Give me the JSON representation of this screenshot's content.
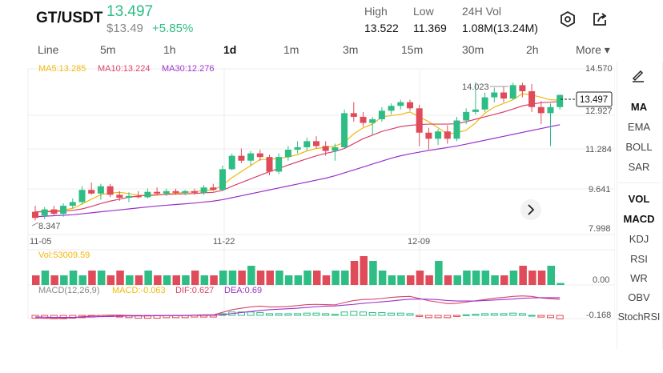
{
  "header": {
    "pair": "GT/USDT",
    "price": "13.497",
    "usd_price": "$13.49",
    "change": "+5.85%",
    "high_label": "High",
    "high_value": "13.522",
    "low_label": "Low",
    "low_value": "11.369",
    "vol_label": "24H Vol",
    "vol_value": "1.08M(13.24M)"
  },
  "timeframes": [
    {
      "label": "Line"
    },
    {
      "label": "5m"
    },
    {
      "label": "1h"
    },
    {
      "label": "1d"
    },
    {
      "label": "1m"
    },
    {
      "label": "3m"
    },
    {
      "label": "15m"
    },
    {
      "label": "30m"
    },
    {
      "label": "2h"
    },
    {
      "label": "More ▾"
    }
  ],
  "active_timeframe": "1d",
  "ma_legend": {
    "ma5": "MA5:13.285",
    "ma10": "MA10:13.224",
    "ma30": "MA30:12.276"
  },
  "price_axis": [
    "14.570",
    "12.927",
    "11.284",
    "9.641",
    "7.998"
  ],
  "current_price_tag": "13.497",
  "high_marker": "14.023",
  "low_marker": "8.347",
  "date_labels": [
    "11-05",
    "11-22",
    "12-09"
  ],
  "volume": {
    "label": "Vol:53009.59",
    "axis": "0.00"
  },
  "macd": {
    "label": "MACD(12,26,9)",
    "macd": "MACD:-0.063",
    "dif": "DIF:0.627",
    "dea": "DEA:0.69",
    "axis": "-0.168"
  },
  "indicators": [
    "MA",
    "EMA",
    "BOLL",
    "SAR",
    "VOL",
    "MACD",
    "KDJ",
    "RSI",
    "WR",
    "OBV",
    "StochRSI"
  ],
  "colors": {
    "up": "#2ebd85",
    "down": "#e04b5a",
    "ma5": "#f0b90b",
    "ma10": "#d9436b",
    "ma30": "#9b32c8"
  },
  "chart_data": {
    "type": "candlestick",
    "ylim": [
      7.998,
      14.57
    ],
    "candles": [
      {
        "o": 8.7,
        "h": 8.95,
        "l": 8.35,
        "c": 8.45
      },
      {
        "o": 8.55,
        "h": 8.9,
        "l": 8.4,
        "c": 8.8
      },
      {
        "o": 8.8,
        "h": 8.95,
        "l": 8.55,
        "c": 8.62
      },
      {
        "o": 8.62,
        "h": 9.05,
        "l": 8.5,
        "c": 8.95
      },
      {
        "o": 8.95,
        "h": 9.25,
        "l": 8.85,
        "c": 9.1
      },
      {
        "o": 9.1,
        "h": 9.75,
        "l": 9.0,
        "c": 9.6
      },
      {
        "o": 9.6,
        "h": 9.9,
        "l": 9.4,
        "c": 9.45
      },
      {
        "o": 9.45,
        "h": 9.85,
        "l": 9.2,
        "c": 9.75
      },
      {
        "o": 9.75,
        "h": 9.85,
        "l": 9.3,
        "c": 9.4
      },
      {
        "o": 9.4,
        "h": 9.55,
        "l": 9.15,
        "c": 9.28
      },
      {
        "o": 9.28,
        "h": 9.5,
        "l": 9.1,
        "c": 9.35
      },
      {
        "o": 9.35,
        "h": 9.55,
        "l": 9.25,
        "c": 9.3
      },
      {
        "o": 9.3,
        "h": 9.65,
        "l": 9.25,
        "c": 9.52
      },
      {
        "o": 9.52,
        "h": 9.7,
        "l": 9.4,
        "c": 9.45
      },
      {
        "o": 9.45,
        "h": 9.65,
        "l": 9.35,
        "c": 9.55
      },
      {
        "o": 9.55,
        "h": 9.65,
        "l": 9.4,
        "c": 9.48
      },
      {
        "o": 9.48,
        "h": 9.6,
        "l": 9.38,
        "c": 9.55
      },
      {
        "o": 9.55,
        "h": 9.65,
        "l": 9.4,
        "c": 9.48
      },
      {
        "o": 9.48,
        "h": 9.8,
        "l": 9.4,
        "c": 9.7
      },
      {
        "o": 9.7,
        "h": 9.85,
        "l": 9.55,
        "c": 9.6
      },
      {
        "o": 9.6,
        "h": 10.6,
        "l": 9.55,
        "c": 10.45
      },
      {
        "o": 10.45,
        "h": 11.1,
        "l": 10.4,
        "c": 11.0
      },
      {
        "o": 11.0,
        "h": 11.3,
        "l": 10.7,
        "c": 10.8
      },
      {
        "o": 10.8,
        "h": 11.2,
        "l": 10.6,
        "c": 11.1
      },
      {
        "o": 11.1,
        "h": 11.25,
        "l": 10.8,
        "c": 10.95
      },
      {
        "o": 10.95,
        "h": 11.05,
        "l": 10.2,
        "c": 10.35
      },
      {
        "o": 10.35,
        "h": 11.1,
        "l": 10.25,
        "c": 10.95
      },
      {
        "o": 10.95,
        "h": 11.4,
        "l": 10.8,
        "c": 11.25
      },
      {
        "o": 11.25,
        "h": 11.6,
        "l": 11.1,
        "c": 11.35
      },
      {
        "o": 11.35,
        "h": 11.75,
        "l": 11.2,
        "c": 11.6
      },
      {
        "o": 11.6,
        "h": 11.8,
        "l": 11.3,
        "c": 11.4
      },
      {
        "o": 11.4,
        "h": 11.6,
        "l": 11.0,
        "c": 11.2
      },
      {
        "o": 11.2,
        "h": 11.5,
        "l": 10.8,
        "c": 11.35
      },
      {
        "o": 11.35,
        "h": 12.9,
        "l": 11.3,
        "c": 12.75
      },
      {
        "o": 12.75,
        "h": 13.2,
        "l": 12.4,
        "c": 12.6
      },
      {
        "o": 12.6,
        "h": 12.8,
        "l": 12.2,
        "c": 12.35
      },
      {
        "o": 12.35,
        "h": 12.6,
        "l": 11.85,
        "c": 12.5
      },
      {
        "o": 12.5,
        "h": 13.0,
        "l": 12.4,
        "c": 12.85
      },
      {
        "o": 12.85,
        "h": 13.15,
        "l": 12.7,
        "c": 13.05
      },
      {
        "o": 13.05,
        "h": 13.3,
        "l": 12.9,
        "c": 13.2
      },
      {
        "o": 13.2,
        "h": 13.3,
        "l": 12.85,
        "c": 12.95
      },
      {
        "o": 12.95,
        "h": 13.1,
        "l": 11.4,
        "c": 11.95
      },
      {
        "o": 11.95,
        "h": 12.15,
        "l": 11.25,
        "c": 11.7
      },
      {
        "o": 11.7,
        "h": 12.1,
        "l": 11.45,
        "c": 12.0
      },
      {
        "o": 12.0,
        "h": 12.25,
        "l": 11.5,
        "c": 11.7
      },
      {
        "o": 11.7,
        "h": 12.6,
        "l": 11.6,
        "c": 12.45
      },
      {
        "o": 12.45,
        "h": 12.95,
        "l": 12.3,
        "c": 12.8
      },
      {
        "o": 12.8,
        "h": 14.02,
        "l": 12.7,
        "c": 12.9
      },
      {
        "o": 12.9,
        "h": 13.6,
        "l": 12.8,
        "c": 13.4
      },
      {
        "o": 13.4,
        "h": 13.8,
        "l": 13.2,
        "c": 13.6
      },
      {
        "o": 13.6,
        "h": 13.85,
        "l": 13.2,
        "c": 13.35
      },
      {
        "o": 13.35,
        "h": 14.0,
        "l": 13.3,
        "c": 13.9
      },
      {
        "o": 13.9,
        "h": 14.0,
        "l": 13.4,
        "c": 13.65
      },
      {
        "o": 13.65,
        "h": 13.95,
        "l": 12.8,
        "c": 13.0
      },
      {
        "o": 13.0,
        "h": 13.25,
        "l": 12.3,
        "c": 12.75
      },
      {
        "o": 12.75,
        "h": 13.15,
        "l": 11.4,
        "c": 13.0
      },
      {
        "o": 13.0,
        "h": 13.52,
        "l": 12.9,
        "c": 13.497
      }
    ],
    "volumes": [
      2,
      3,
      2,
      2,
      3,
      2,
      3,
      3,
      2,
      3,
      2,
      2,
      3,
      2,
      2,
      2,
      2,
      3,
      2,
      2,
      3,
      3,
      3,
      4,
      3,
      3,
      3,
      2,
      2,
      3,
      3,
      2,
      3,
      3,
      5,
      6,
      5,
      3,
      2,
      2,
      2,
      3,
      2,
      5,
      2,
      2,
      3,
      3,
      3,
      2,
      2,
      3,
      4,
      3,
      3,
      4,
      0.4
    ],
    "ma5": [
      8.7,
      8.72,
      8.74,
      8.78,
      8.84,
      9.02,
      9.22,
      9.4,
      9.47,
      9.5,
      9.45,
      9.38,
      9.36,
      9.38,
      9.43,
      9.46,
      9.5,
      9.52,
      9.58,
      9.6,
      9.8,
      10.1,
      10.35,
      10.6,
      10.85,
      10.85,
      10.9,
      10.95,
      11.05,
      11.2,
      11.3,
      11.35,
      11.4,
      11.55,
      11.9,
      12.15,
      12.3,
      12.6,
      12.65,
      12.7,
      12.8,
      12.6,
      12.4,
      12.15,
      11.9,
      11.95,
      12.05,
      12.35,
      12.75,
      13.0,
      13.15,
      13.3,
      13.55,
      13.5,
      13.4,
      13.3,
      13.285
    ],
    "ma10": [
      8.7,
      8.7,
      8.71,
      8.73,
      8.76,
      8.82,
      8.92,
      9.04,
      9.14,
      9.22,
      9.3,
      9.35,
      9.38,
      9.4,
      9.42,
      9.43,
      9.44,
      9.45,
      9.48,
      9.5,
      9.58,
      9.75,
      9.9,
      10.05,
      10.2,
      10.35,
      10.48,
      10.62,
      10.75,
      10.88,
      11.0,
      11.1,
      11.18,
      11.3,
      11.5,
      11.7,
      11.85,
      12.0,
      12.1,
      12.2,
      12.25,
      12.28,
      12.3,
      12.3,
      12.3,
      12.32,
      12.4,
      12.5,
      12.6,
      12.7,
      12.8,
      12.92,
      13.05,
      13.12,
      13.18,
      13.2,
      13.224
    ],
    "ma30": [
      8.5,
      8.52,
      8.54,
      8.56,
      8.58,
      8.62,
      8.66,
      8.7,
      8.74,
      8.78,
      8.82,
      8.86,
      8.9,
      8.94,
      8.97,
      9.0,
      9.03,
      9.06,
      9.1,
      9.14,
      9.2,
      9.28,
      9.36,
      9.44,
      9.52,
      9.6,
      9.68,
      9.76,
      9.84,
      9.92,
      10.0,
      10.08,
      10.18,
      10.3,
      10.42,
      10.54,
      10.66,
      10.78,
      10.9,
      11.0,
      11.08,
      11.15,
      11.22,
      11.28,
      11.34,
      11.4,
      11.48,
      11.56,
      11.64,
      11.72,
      11.8,
      11.88,
      11.96,
      12.04,
      12.12,
      12.2,
      12.276
    ],
    "macd_hist": [
      -0.05,
      -0.05,
      -0.06,
      -0.06,
      -0.05,
      -0.04,
      -0.03,
      -0.02,
      -0.02,
      -0.03,
      -0.04,
      -0.05,
      -0.05,
      -0.05,
      -0.04,
      -0.04,
      -0.04,
      -0.03,
      -0.03,
      -0.03,
      0.03,
      0.06,
      0.06,
      0.06,
      0.05,
      0.03,
      0.03,
      0.03,
      0.03,
      0.04,
      0.04,
      0.03,
      0.02,
      0.06,
      0.07,
      0.06,
      0.05,
      0.05,
      0.04,
      0.04,
      0.03,
      -0.02,
      -0.04,
      -0.04,
      -0.04,
      -0.02,
      0.01,
      0.02,
      0.03,
      0.03,
      0.03,
      0.04,
      0.03,
      0.0,
      -0.03,
      -0.04,
      -0.063
    ],
    "dif": [
      -0.1,
      -0.11,
      -0.12,
      -0.11,
      -0.09,
      -0.05,
      -0.02,
      0.0,
      0.01,
      0.01,
      0.0,
      -0.01,
      -0.01,
      -0.01,
      0.0,
      0.0,
      0.0,
      0.01,
      0.02,
      0.02,
      0.12,
      0.22,
      0.28,
      0.33,
      0.36,
      0.33,
      0.33,
      0.35,
      0.38,
      0.42,
      0.43,
      0.42,
      0.41,
      0.5,
      0.58,
      0.62,
      0.63,
      0.66,
      0.7,
      0.73,
      0.74,
      0.66,
      0.57,
      0.52,
      0.46,
      0.47,
      0.52,
      0.57,
      0.62,
      0.67,
      0.7,
      0.74,
      0.76,
      0.74,
      0.68,
      0.65,
      0.627
    ],
    "dea": [
      -0.06,
      -0.07,
      -0.08,
      -0.08,
      -0.08,
      -0.07,
      -0.06,
      -0.05,
      -0.04,
      -0.03,
      -0.02,
      -0.02,
      -0.02,
      -0.01,
      -0.01,
      -0.01,
      -0.01,
      0.0,
      0.0,
      0.01,
      0.03,
      0.07,
      0.11,
      0.15,
      0.19,
      0.22,
      0.24,
      0.26,
      0.28,
      0.31,
      0.34,
      0.36,
      0.37,
      0.4,
      0.43,
      0.47,
      0.5,
      0.53,
      0.56,
      0.6,
      0.63,
      0.64,
      0.63,
      0.61,
      0.58,
      0.56,
      0.56,
      0.56,
      0.58,
      0.6,
      0.62,
      0.64,
      0.67,
      0.68,
      0.69,
      0.69,
      0.69
    ]
  }
}
